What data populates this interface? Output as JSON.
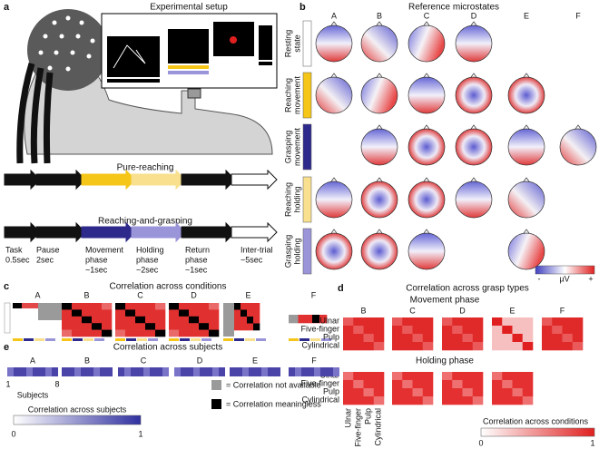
{
  "a": {
    "label": "a",
    "title": "Experimental setup",
    "pure": "Pure-reaching",
    "grasp": "Reaching-and-grasping",
    "phases": [
      [
        "Task",
        "0.5sec"
      ],
      [
        "Pause",
        "2sec"
      ],
      [
        "Movement",
        "phase",
        "~1sec"
      ],
      [
        "Holding",
        "phase",
        "~2sec"
      ],
      [
        "Return",
        "phase",
        "~1sec"
      ],
      [
        "Inter-trial",
        "~5sec"
      ]
    ]
  },
  "b": {
    "label": "b",
    "title": "Reference microstates",
    "columns": [
      "A",
      "B",
      "C",
      "D",
      "E",
      "F"
    ],
    "rows": [
      [
        "Resting",
        "state"
      ],
      [
        "Reaching",
        "movement"
      ],
      [
        "Grasping",
        "movement"
      ],
      [
        "Reaching",
        "holding"
      ],
      [
        "Grasping",
        "holding"
      ]
    ],
    "colorbar": [
      "-",
      "µV",
      "+"
    ]
  },
  "c": {
    "label": "c",
    "title": "Correlation across conditions",
    "columns": [
      "A",
      "B",
      "C",
      "D",
      "E",
      "F"
    ]
  },
  "d": {
    "label": "d",
    "title": "Correlation across grasp types",
    "columns": [
      "B",
      "C",
      "D",
      "E",
      "F"
    ],
    "movement": "Movement phase",
    "holding": "Holding phase",
    "grasps": [
      "Ulnar",
      "Five-finger",
      "Pulp",
      "Cylindrical"
    ],
    "colorbar": {
      "title": "Correlation across conditions",
      "min": "0",
      "max": "1"
    }
  },
  "e": {
    "label": "e",
    "title": "Correlation across subjects",
    "columns": [
      "A",
      "B",
      "C",
      "D",
      "E",
      "F"
    ],
    "subject_first": "1",
    "subject_last": "8",
    "subjects": "Subjects",
    "colorbar": {
      "title": "Correlation across subjects",
      "min": "0",
      "max": "1"
    },
    "legend": [
      "= Correlation not available",
      "= Correlation meaningless"
    ]
  }
}
